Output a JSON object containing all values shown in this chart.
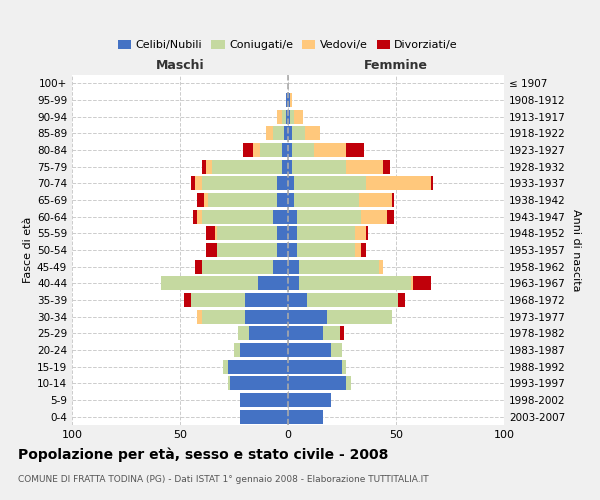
{
  "age_groups": [
    "0-4",
    "5-9",
    "10-14",
    "15-19",
    "20-24",
    "25-29",
    "30-34",
    "35-39",
    "40-44",
    "45-49",
    "50-54",
    "55-59",
    "60-64",
    "65-69",
    "70-74",
    "75-79",
    "80-84",
    "85-89",
    "90-94",
    "95-99",
    "100+"
  ],
  "birth_years": [
    "2003-2007",
    "1998-2002",
    "1993-1997",
    "1988-1992",
    "1983-1987",
    "1978-1982",
    "1973-1977",
    "1968-1972",
    "1963-1967",
    "1958-1962",
    "1953-1957",
    "1948-1952",
    "1943-1947",
    "1938-1942",
    "1933-1937",
    "1928-1932",
    "1923-1927",
    "1918-1922",
    "1913-1917",
    "1908-1912",
    "≤ 1907"
  ],
  "colors": {
    "celibi": "#4472C4",
    "coniugati": "#c5d9a0",
    "vedovi": "#ffc87c",
    "divorziati": "#c0000a"
  },
  "maschi": {
    "celibi": [
      22,
      22,
      27,
      28,
      22,
      18,
      20,
      20,
      14,
      7,
      5,
      5,
      7,
      5,
      5,
      3,
      3,
      2,
      1,
      1,
      0
    ],
    "coniugati": [
      0,
      0,
      1,
      2,
      3,
      5,
      20,
      25,
      45,
      33,
      28,
      28,
      33,
      32,
      35,
      32,
      10,
      5,
      2,
      0,
      0
    ],
    "vedovi": [
      0,
      0,
      0,
      0,
      0,
      0,
      2,
      0,
      0,
      0,
      0,
      1,
      2,
      2,
      3,
      3,
      3,
      3,
      2,
      0,
      0
    ],
    "divorziati": [
      0,
      0,
      0,
      0,
      0,
      0,
      0,
      3,
      0,
      3,
      5,
      4,
      2,
      3,
      2,
      2,
      5,
      0,
      0,
      0,
      0
    ]
  },
  "femmine": {
    "celibi": [
      16,
      20,
      27,
      25,
      20,
      16,
      18,
      9,
      5,
      5,
      4,
      4,
      4,
      3,
      3,
      2,
      2,
      2,
      1,
      1,
      0
    ],
    "coniugati": [
      0,
      0,
      2,
      2,
      5,
      8,
      30,
      42,
      52,
      37,
      27,
      27,
      30,
      30,
      33,
      25,
      10,
      6,
      2,
      0,
      0
    ],
    "vedovi": [
      0,
      0,
      0,
      0,
      0,
      0,
      0,
      0,
      1,
      2,
      3,
      5,
      12,
      15,
      30,
      17,
      15,
      7,
      4,
      1,
      0
    ],
    "divorziati": [
      0,
      0,
      0,
      0,
      0,
      2,
      0,
      3,
      8,
      0,
      2,
      1,
      3,
      1,
      1,
      3,
      8,
      0,
      0,
      0,
      0
    ]
  },
  "title": "Popolazione per età, sesso e stato civile - 2008",
  "subtitle": "COMUNE DI FRATTA TODINA (PG) - Dati ISTAT 1° gennaio 2008 - Elaborazione TUTTITALIA.IT",
  "xlabel_left": "Maschi",
  "xlabel_right": "Femmine",
  "ylabel_left": "Fasce di età",
  "ylabel_right": "Anni di nascita",
  "xlim": 100,
  "background_color": "#f0f0f0",
  "plot_bg_color": "#ffffff",
  "grid_color": "#cccccc",
  "legend_labels": [
    "Celibi/Nubili",
    "Coniugati/e",
    "Vedovi/e",
    "Divorziati/e"
  ]
}
